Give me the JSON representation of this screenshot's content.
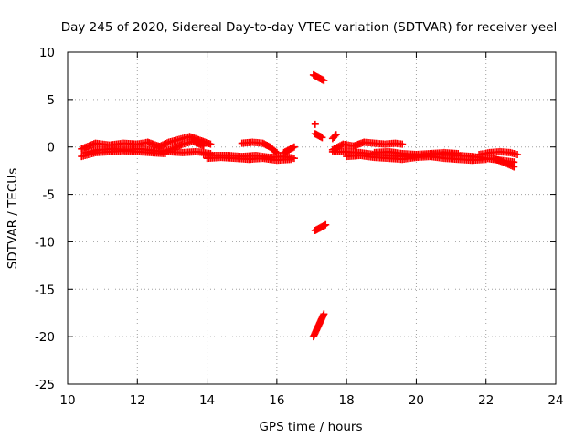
{
  "chart_data": {
    "type": "scatter",
    "title": "Day 245 of 2020, Sidereal Day-to-day VTEC variation (SDTVAR) for receiver yeel",
    "xlabel": "GPS time / hours",
    "ylabel": "SDTVAR / TECUs",
    "xlim": [
      10,
      24
    ],
    "ylim": [
      -25,
      10
    ],
    "xticks": [
      "10",
      "12",
      "14",
      "16",
      "18",
      "20",
      "22",
      "24"
    ],
    "yticks": [
      "10",
      "5",
      "0",
      "-5",
      "-10",
      "-15",
      "-20",
      "-25"
    ],
    "grid": true,
    "marker": "+",
    "series": [
      {
        "name": "SDTVAR",
        "color": "#ff0000",
        "tracks": [
          {
            "x": [
              10.4,
              10.8,
              11.2,
              11.6,
              12.0,
              12.3,
              12.6
            ],
            "y": [
              -0.2,
              0.4,
              0.2,
              0.4,
              0.3,
              0.5,
              0.1
            ]
          },
          {
            "x": [
              10.4,
              10.8,
              11.2,
              11.6,
              12.0,
              12.4,
              12.8
            ],
            "y": [
              -1.0,
              -0.6,
              -0.5,
              -0.4,
              -0.5,
              -0.6,
              -0.7
            ]
          },
          {
            "x": [
              10.5,
              10.9,
              11.3,
              11.7,
              12.1,
              12.5,
              12.9,
              13.3,
              13.7,
              14.1
            ],
            "y": [
              -0.6,
              -0.3,
              -0.2,
              -0.3,
              -0.2,
              -0.4,
              -0.5,
              -0.6,
              -0.5,
              -0.7
            ]
          },
          {
            "x": [
              12.6,
              12.9,
              13.2,
              13.5,
              13.8,
              14.1
            ],
            "y": [
              0.0,
              0.5,
              0.8,
              1.1,
              0.7,
              0.3
            ]
          },
          {
            "x": [
              12.7,
              13.0,
              13.3,
              13.6,
              13.9
            ],
            "y": [
              -0.5,
              -0.2,
              0.3,
              0.6,
              0.1
            ]
          },
          {
            "x": [
              13.9,
              14.2,
              14.6,
              15.0,
              15.4,
              15.8,
              16.2,
              16.5
            ],
            "y": [
              -0.8,
              -0.9,
              -0.9,
              -1.0,
              -0.9,
              -1.1,
              -1.0,
              -1.2
            ]
          },
          {
            "x": [
              14.0,
              14.4,
              14.8,
              15.2,
              15.6,
              16.0,
              16.4
            ],
            "y": [
              -1.2,
              -1.1,
              -1.2,
              -1.3,
              -1.2,
              -1.4,
              -1.3
            ]
          },
          {
            "x": [
              15.0,
              15.3,
              15.6,
              15.8,
              16.0
            ],
            "y": [
              0.4,
              0.5,
              0.4,
              0.0,
              -0.6
            ]
          },
          {
            "x": [
              16.2,
              16.35,
              16.5
            ],
            "y": [
              -0.6,
              -0.3,
              0.0
            ]
          },
          {
            "x": [
              17.05,
              17.15,
              17.25,
              17.35
            ],
            "y": [
              7.6,
              7.4,
              7.2,
              7.0
            ]
          },
          {
            "x": [
              17.1
            ],
            "y": [
              2.4
            ]
          },
          {
            "x": [
              17.1,
              17.2,
              17.3
            ],
            "y": [
              1.4,
              1.2,
              1.0
            ]
          },
          {
            "x": [
              17.6,
              17.7
            ],
            "y": [
              0.9,
              1.3
            ]
          },
          {
            "x": [
              17.1,
              17.2,
              17.3,
              17.4
            ],
            "y": [
              -8.8,
              -8.6,
              -8.4,
              -8.2
            ]
          },
          {
            "x": [
              17.05,
              17.1,
              17.15,
              17.2,
              17.25,
              17.3,
              17.35
            ],
            "y": [
              -20.0,
              -19.6,
              -19.2,
              -18.8,
              -18.4,
              -18.0,
              -17.6
            ]
          },
          {
            "x": [
              17.6,
              17.9,
              18.2,
              18.5,
              18.8,
              19.1,
              19.4,
              19.6
            ],
            "y": [
              -0.3,
              0.3,
              0.1,
              0.5,
              0.4,
              0.3,
              0.4,
              0.3
            ]
          },
          {
            "x": [
              17.6,
              18.0,
              18.4,
              18.8,
              19.2,
              19.6,
              20.0,
              20.4,
              20.8,
              21.2,
              21.6,
              22.0,
              22.4,
              22.8
            ],
            "y": [
              -0.5,
              -0.5,
              -0.6,
              -0.8,
              -0.9,
              -1.0,
              -1.0,
              -0.8,
              -0.8,
              -0.9,
              -1.0,
              -1.2,
              -1.4,
              -1.6
            ]
          },
          {
            "x": [
              18.0,
              18.4,
              18.8,
              19.2,
              19.6,
              20.0,
              20.4,
              20.8,
              21.2,
              21.6,
              22.0
            ],
            "y": [
              -1.0,
              -0.9,
              -1.1,
              -1.2,
              -1.3,
              -1.1,
              -1.0,
              -1.2,
              -1.3,
              -1.4,
              -1.3
            ]
          },
          {
            "x": [
              18.8,
              19.2,
              19.6,
              20.0,
              20.4,
              20.8,
              21.2
            ],
            "y": [
              -0.6,
              -0.5,
              -0.7,
              -0.8,
              -0.7,
              -0.6,
              -0.7
            ]
          },
          {
            "x": [
              21.8,
              22.1,
              22.4,
              22.7,
              22.9
            ],
            "y": [
              -0.8,
              -0.6,
              -0.5,
              -0.6,
              -0.8
            ]
          },
          {
            "x": [
              22.2,
              22.5,
              22.8
            ],
            "y": [
              -1.2,
              -1.6,
              -2.1
            ]
          }
        ]
      }
    ]
  }
}
